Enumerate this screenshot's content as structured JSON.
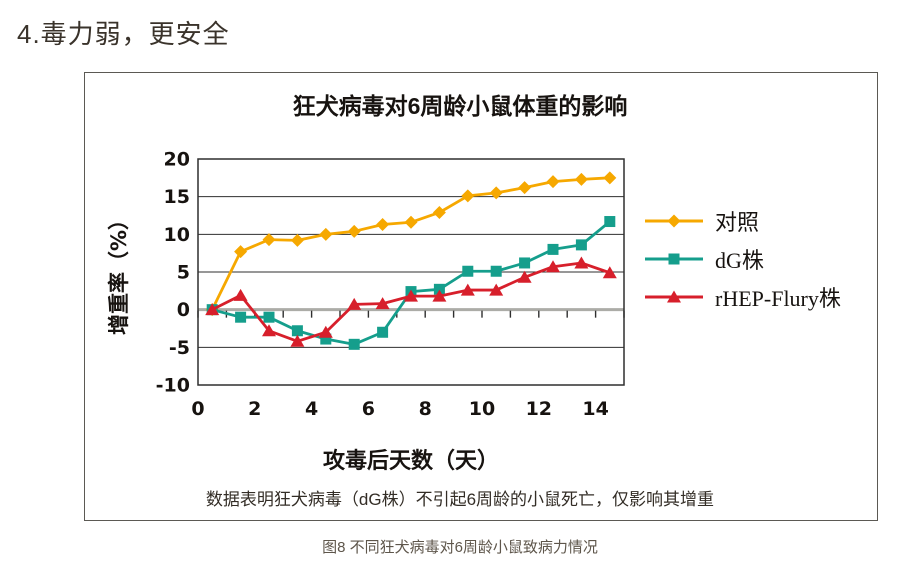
{
  "page": {
    "heading": "4.毒力弱，更安全",
    "caption": "图8 不同狂犬病毒对6周龄小鼠致病力情况"
  },
  "chart_data": {
    "type": "line",
    "title": "狂犬病毒对6周龄小鼠体重的影响",
    "xlabel": "攻毒后天数（天）",
    "ylabel": "增重率（%）",
    "note": "数据表明狂犬病毒（dG株）不引起6周龄的小鼠死亡，仅影响其增重",
    "x": [
      0,
      1,
      2,
      3,
      4,
      5,
      6,
      7,
      8,
      9,
      10,
      11,
      12,
      13,
      14
    ],
    "x_tick_labels": [
      "0",
      "2",
      "4",
      "6",
      "8",
      "10",
      "12",
      "14"
    ],
    "ylim": [
      -10,
      20
    ],
    "yticks": [
      20,
      15,
      10,
      5,
      0,
      -5,
      -10
    ],
    "grid": "horizontal",
    "legend_position": "right",
    "series": [
      {
        "name": "对照",
        "marker": "diamond",
        "color": "#F6A800",
        "values": [
          0,
          7.7,
          9.3,
          9.2,
          10.0,
          10.4,
          11.3,
          11.6,
          12.9,
          15.1,
          15.5,
          16.2,
          17.0,
          17.3,
          17.5
        ]
      },
      {
        "name": "dG株",
        "marker": "square",
        "color": "#159E8C",
        "values": [
          0,
          -1.0,
          -1.0,
          -2.8,
          -3.9,
          -4.6,
          -3.0,
          2.4,
          2.7,
          5.1,
          5.1,
          6.2,
          8.0,
          8.6,
          11.7
        ]
      },
      {
        "name": "rHEP-Flury株",
        "marker": "triangle",
        "color": "#D71F2B",
        "values": [
          0,
          1.9,
          -2.8,
          -4.2,
          -3.0,
          0.7,
          0.8,
          1.8,
          1.8,
          2.6,
          2.6,
          4.3,
          5.7,
          6.2,
          4.9
        ]
      }
    ],
    "colors": {
      "grid": "#2f2f2f",
      "zero_axis": "#acaca7",
      "text": "#171310"
    }
  }
}
